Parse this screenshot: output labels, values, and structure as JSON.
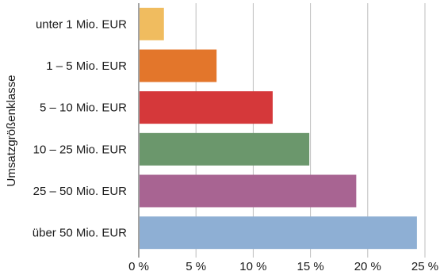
{
  "chart_data": {
    "type": "bar",
    "orientation": "horizontal",
    "title": "",
    "xlabel": "",
    "ylabel": "Umsatzgrößenklasse",
    "xlim": [
      0,
      25
    ],
    "x_ticks": [
      0,
      5,
      10,
      15,
      20,
      25
    ],
    "x_tick_labels": [
      "0 %",
      "5 %",
      "10 %",
      "15 %",
      "20 %",
      "25 %"
    ],
    "grid": true,
    "categories": [
      "unter 1 Mio. EUR",
      "1 – 5 Mio. EUR",
      "5 – 10 Mio. EUR",
      "10 – 25 Mio. EUR",
      "25 – 50 Mio. EUR",
      "über 50 Mio. EUR"
    ],
    "values": [
      2.2,
      6.8,
      11.7,
      14.9,
      19.0,
      24.3
    ],
    "colors": [
      "#f0bc5f",
      "#e3762b",
      "#d5383a",
      "#6b976c",
      "#a86492",
      "#8eafd4"
    ]
  }
}
